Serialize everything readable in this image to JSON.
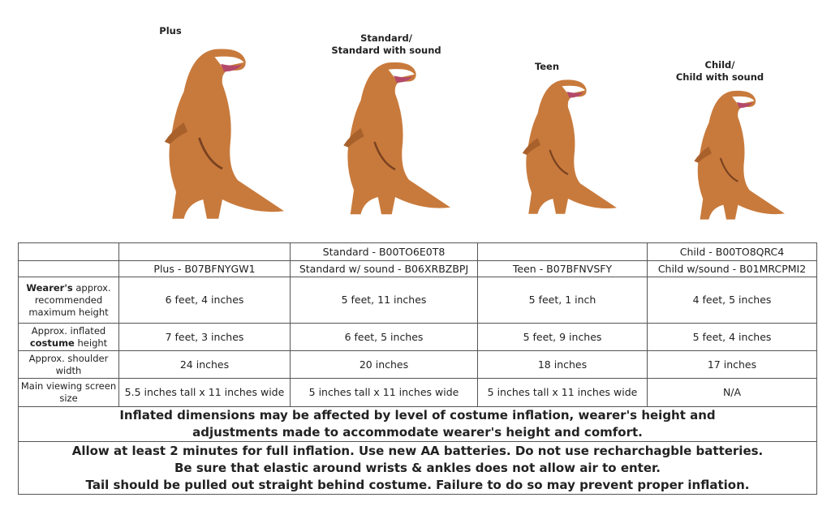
{
  "captions": [
    {
      "lines": [
        "Plus"
      ]
    },
    {
      "lines": [
        "Standard/",
        "Standard with sound"
      ]
    },
    {
      "lines": [
        "Teen"
      ]
    },
    {
      "lines": [
        "Child/",
        "Child with sound"
      ]
    }
  ],
  "table": {
    "columns": [
      {
        "lines": [
          "Plus - B07BFNYGW1"
        ]
      },
      {
        "lines": [
          "Standard - B00TO6E0T8",
          "Standard w/ sound - B06XRBZBPJ"
        ]
      },
      {
        "lines": [
          "Teen - B07BFNVSFY"
        ]
      },
      {
        "lines": [
          "Child - B00TO8QRC4",
          "Child w/sound - B01MRCPMI2"
        ]
      }
    ],
    "rows": [
      {
        "label": [
          "Wearer's",
          " approx. recommended maximum height"
        ],
        "bold": 0,
        "cells": [
          "6 feet, 4 inches",
          "5 feet, 11 inches",
          "5 feet, 1 inch",
          "4 feet, 5 inches"
        ]
      },
      {
        "label": [
          "Approx. inflated ",
          "costume",
          " height"
        ],
        "bold": 1,
        "cells": [
          "7 feet, 3 inches",
          "6 feet, 5 inches",
          "5 feet, 9 inches",
          "5 feet, 4 inches"
        ]
      },
      {
        "label": [
          "Approx. shoulder width"
        ],
        "cells": [
          "24 inches",
          "20 inches",
          "18 inches",
          "17 inches"
        ]
      },
      {
        "label": [
          "Main viewing screen size"
        ],
        "cells": [
          "5.5 inches tall x 11 inches wide",
          "5 inches tall x 11 inches wide",
          "5 inches tall x 11 inches wide",
          "N/A"
        ]
      }
    ],
    "notes": [
      {
        "lines": [
          "Inflated dimensions may be affected by level of costume inflation, wearer's height and",
          "adjustments made to accommodate wearer's height and comfort."
        ]
      },
      {
        "lines": [
          "Allow at least 2 minutes for full inflation. Use new AA batteries. Do not use recharchagble batteries.",
          "Be sure that elastic around wrists & ankles does not allow air to enter.",
          "Tail should be pulled out straight behind costume. Failure to do so may prevent proper inflation."
        ]
      }
    ]
  }
}
